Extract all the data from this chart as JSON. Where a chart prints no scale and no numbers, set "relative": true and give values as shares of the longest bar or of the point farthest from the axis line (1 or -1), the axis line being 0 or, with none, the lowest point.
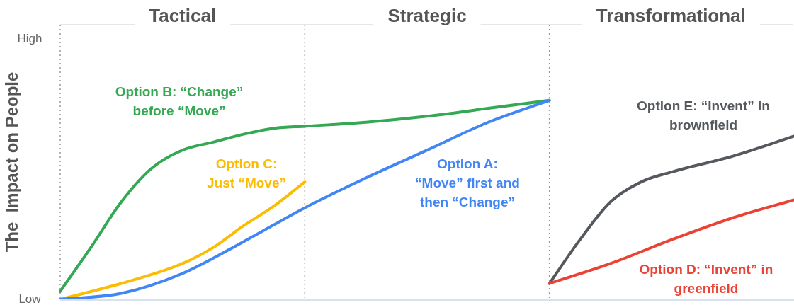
{
  "chart_data": {
    "type": "line",
    "ylabel": "The  Impact on People",
    "relative": true,
    "annotations": [
      "High",
      "Low",
      "Tactical",
      "Strategic",
      "Transformational"
    ],
    "categories": [
      null,
      null,
      null,
      null,
      null,
      null,
      null,
      null,
      null,
      null,
      null,
      null,
      null,
      null,
      null,
      null,
      null,
      null,
      null,
      null,
      null,
      null,
      null,
      null,
      null
    ],
    "series": [
      {
        "name": "Option A: “Move” first and then “Change”",
        "color": "#4285f4",
        "values": [
          0,
          null,
          0.03,
          null,
          0.13,
          null,
          0.29,
          null,
          0.46,
          null,
          0.61,
          null,
          0.75,
          null,
          0.89,
          null,
          1,
          null,
          null,
          null,
          null,
          null,
          null,
          null,
          null
        ]
      },
      {
        "name": "Option B: “Change” before “Move”",
        "color": "#34a853",
        "values": [
          0.04,
          0.26,
          0.49,
          0.66,
          0.75,
          0.79,
          0.83,
          0.86,
          0.87,
          null,
          0.89,
          null,
          0.92,
          null,
          0.96,
          null,
          1,
          null,
          null,
          null,
          null,
          null,
          null,
          null,
          null
        ]
      },
      {
        "name": "Option C: Just “Move”",
        "color": "#fbbc04",
        "values": [
          0,
          null,
          0.08,
          null,
          0.18,
          0.26,
          0.37,
          0.47,
          0.59,
          null,
          null,
          null,
          null,
          null,
          null,
          null,
          null,
          null,
          null,
          null,
          null,
          null,
          null,
          null,
          null
        ]
      },
      {
        "name": "Option D: “Invent” in greenfield",
        "color": "#ea4335",
        "values": [
          null,
          null,
          null,
          null,
          null,
          null,
          null,
          null,
          null,
          null,
          null,
          null,
          null,
          null,
          null,
          null,
          0.08,
          null,
          0.18,
          null,
          0.3,
          null,
          0.41,
          null,
          0.5
        ]
      },
      {
        "name": "Option E: “Invent” in brownfield",
        "color": "#55595e",
        "values": [
          null,
          null,
          null,
          null,
          null,
          null,
          null,
          null,
          null,
          null,
          null,
          null,
          null,
          null,
          null,
          null,
          0.08,
          0.3,
          0.49,
          0.59,
          0.64,
          null,
          0.72,
          null,
          0.82
        ]
      }
    ],
    "legend": false,
    "grid": false,
    "marker": "none",
    "line_style": "solid"
  }
}
